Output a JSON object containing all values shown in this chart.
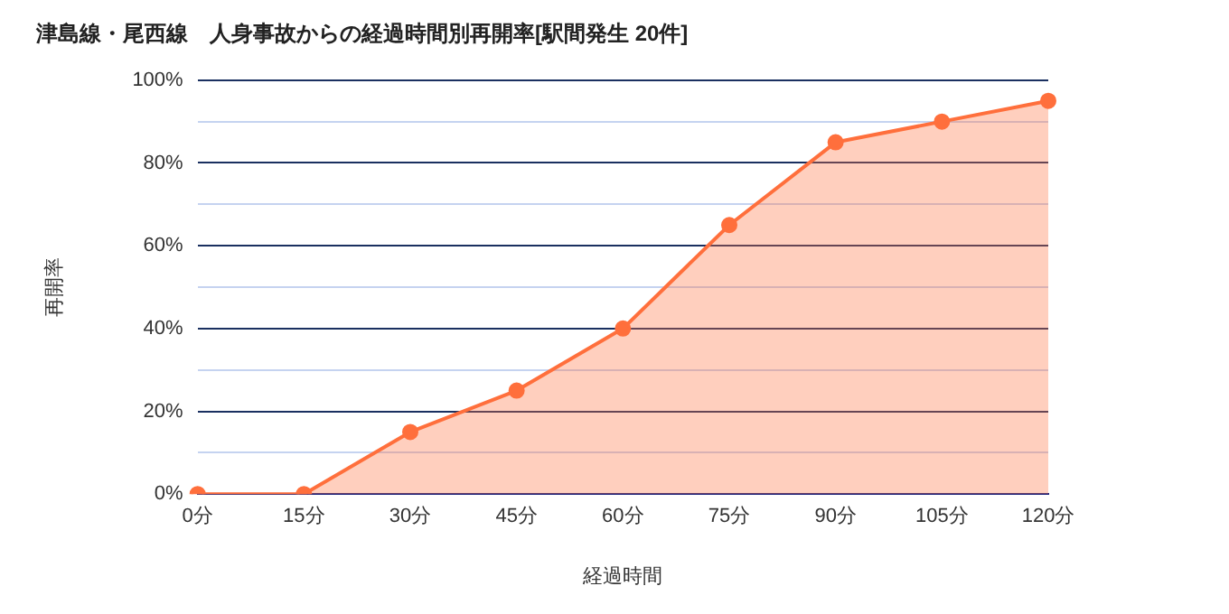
{
  "chart_data": {
    "type": "area",
    "title": "津島線・尾西線　人身事故からの経過時間別再開率[駅間発生 20件]",
    "xlabel": "経過時間",
    "ylabel": "再開率",
    "categories": [
      "0分",
      "15分",
      "30分",
      "45分",
      "60分",
      "75分",
      "90分",
      "105分",
      "120分"
    ],
    "series": [
      {
        "color": "#ff6f3c",
        "values": [
          0,
          0,
          15,
          25,
          40,
          65,
          85,
          90,
          95
        ]
      }
    ],
    "ylim": [
      0,
      100
    ],
    "yticks": [
      {
        "value": 0,
        "label": "0%"
      },
      {
        "value": 10,
        "label": null
      },
      {
        "value": 20,
        "label": "20%"
      },
      {
        "value": 30,
        "label": null
      },
      {
        "value": 40,
        "label": "40%"
      },
      {
        "value": 50,
        "label": null
      },
      {
        "value": 60,
        "label": "60%"
      },
      {
        "value": 70,
        "label": null
      },
      {
        "value": 80,
        "label": "80%"
      },
      {
        "value": 90,
        "label": null
      },
      {
        "value": 100,
        "label": "100%"
      }
    ],
    "grid": "y",
    "legend": false,
    "marker": "circle",
    "line_style": "solid"
  }
}
